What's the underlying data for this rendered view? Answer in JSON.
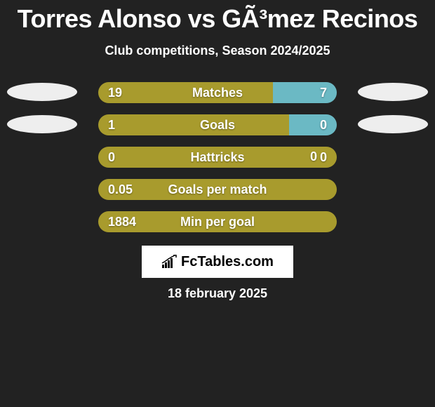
{
  "title": "Torres Alonso vs GÃ³mez Recinos",
  "subtitle": "Club competitions, Season 2024/2025",
  "date": "18 february 2025",
  "brand": {
    "text": "FcTables.com"
  },
  "colors": {
    "background": "#222222",
    "player1": "#a89b2d",
    "player2": "#6bb9c4",
    "oval1": "#eeeeee",
    "oval2": "#eeeeee",
    "text": "#ffffff"
  },
  "rows": [
    {
      "label": "Matches",
      "left_value": "19",
      "right_value": "7",
      "left_pct": 73.1,
      "right_pct": 26.9,
      "show_ovals": true
    },
    {
      "label": "Goals",
      "left_value": "1",
      "right_value": "0",
      "left_pct": 80,
      "right_pct": 20,
      "show_ovals": true
    },
    {
      "label": "Hattricks",
      "left_value": "0",
      "right_value": "0",
      "left_pct": 100,
      "right_pct": 0,
      "show_ovals": false
    },
    {
      "label": "Goals per match",
      "left_value": "0.05",
      "right_value": "",
      "left_pct": 100,
      "right_pct": 0,
      "show_ovals": false
    },
    {
      "label": "Min per goal",
      "left_value": "1884",
      "right_value": "",
      "left_pct": 100,
      "right_pct": 0,
      "show_ovals": false
    }
  ]
}
